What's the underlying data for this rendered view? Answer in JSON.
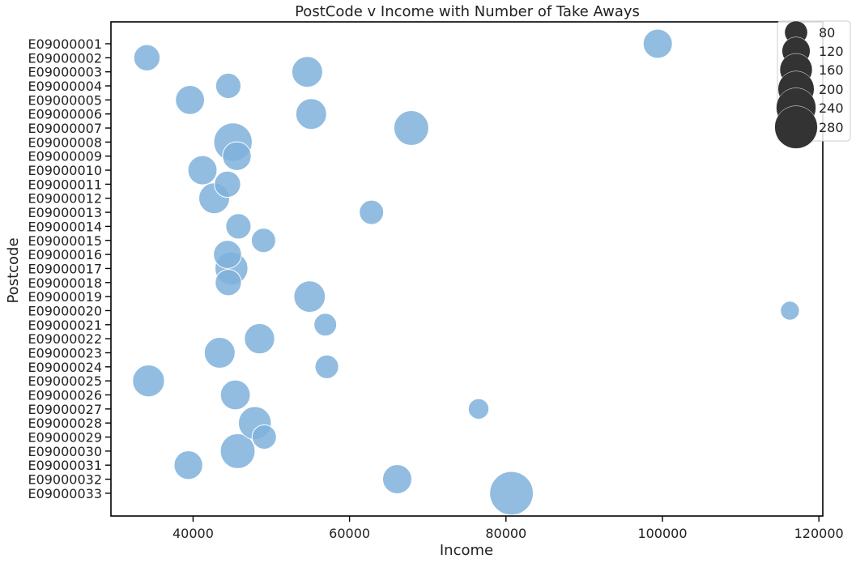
{
  "chart_data": {
    "type": "scatter",
    "title": "PostCode v Income with Number of Take Aways",
    "xlabel": "Income",
    "ylabel": "Postcode",
    "xlim": [
      29500,
      120500
    ],
    "xticks": [
      40000,
      60000,
      80000,
      100000,
      120000
    ],
    "categories": [
      "E09000001",
      "E09000002",
      "E09000003",
      "E09000004",
      "E09000005",
      "E09000006",
      "E09000007",
      "E09000008",
      "E09000009",
      "E09000010",
      "E09000011",
      "E09000012",
      "E09000013",
      "E09000014",
      "E09000015",
      "E09000016",
      "E09000017",
      "E09000018",
      "E09000019",
      "E09000020",
      "E09000021",
      "E09000022",
      "E09000023",
      "E09000024",
      "E09000025",
      "E09000026",
      "E09000027",
      "E09000028",
      "E09000029",
      "E09000030",
      "E09000031",
      "E09000032",
      "E09000033"
    ],
    "points": [
      {
        "postcode": "E09000001",
        "income": 99400,
        "takeaways": 130
      },
      {
        "postcode": "E09000002",
        "income": 34100,
        "takeaways": 105
      },
      {
        "postcode": "E09000003",
        "income": 54600,
        "takeaways": 145
      },
      {
        "postcode": "E09000004",
        "income": 44500,
        "takeaways": 98
      },
      {
        "postcode": "E09000005",
        "income": 39600,
        "takeaways": 128
      },
      {
        "postcode": "E09000006",
        "income": 55100,
        "takeaways": 145
      },
      {
        "postcode": "E09000007",
        "income": 67900,
        "takeaways": 185
      },
      {
        "postcode": "E09000008",
        "income": 45100,
        "takeaways": 225
      },
      {
        "postcode": "E09000009",
        "income": 45600,
        "takeaways": 125
      },
      {
        "postcode": "E09000010",
        "income": 41200,
        "takeaways": 130
      },
      {
        "postcode": "E09000011",
        "income": 44400,
        "takeaways": 105
      },
      {
        "postcode": "E09000012",
        "income": 42700,
        "takeaways": 145
      },
      {
        "postcode": "E09000013",
        "income": 62800,
        "takeaways": 90
      },
      {
        "postcode": "E09000014",
        "income": 45800,
        "takeaways": 98
      },
      {
        "postcode": "E09000015",
        "income": 49000,
        "takeaways": 90
      },
      {
        "postcode": "E09000016",
        "income": 44400,
        "takeaways": 120
      },
      {
        "postcode": "E09000017",
        "income": 44900,
        "takeaways": 165
      },
      {
        "postcode": "E09000018",
        "income": 44500,
        "takeaways": 105
      },
      {
        "postcode": "E09000019",
        "income": 54900,
        "takeaways": 150
      },
      {
        "postcode": "E09000020",
        "income": 116300,
        "takeaways": 55
      },
      {
        "postcode": "E09000021",
        "income": 56900,
        "takeaways": 78
      },
      {
        "postcode": "E09000022",
        "income": 48500,
        "takeaways": 140
      },
      {
        "postcode": "E09000023",
        "income": 43400,
        "takeaways": 145
      },
      {
        "postcode": "E09000024",
        "income": 57100,
        "takeaways": 85
      },
      {
        "postcode": "E09000025",
        "income": 34300,
        "takeaways": 155
      },
      {
        "postcode": "E09000026",
        "income": 45400,
        "takeaways": 135
      },
      {
        "postcode": "E09000027",
        "income": 76500,
        "takeaways": 65
      },
      {
        "postcode": "E09000028",
        "income": 47900,
        "takeaways": 165
      },
      {
        "postcode": "E09000029",
        "income": 49100,
        "takeaways": 90
      },
      {
        "postcode": "E09000030",
        "income": 45700,
        "takeaways": 185
      },
      {
        "postcode": "E09000031",
        "income": 39400,
        "takeaways": 125
      },
      {
        "postcode": "E09000032",
        "income": 66100,
        "takeaways": 130
      },
      {
        "postcode": "E09000033",
        "income": 80700,
        "takeaways": 290
      }
    ],
    "size_legend": {
      "placement": "top-right",
      "values": [
        80,
        120,
        160,
        200,
        240,
        280
      ]
    },
    "grid": false,
    "colors": {
      "point": "#7fb2da",
      "point_edge": "#ffffff",
      "legend_marker": "#333333",
      "axis": "#000000"
    },
    "point_opacity": 0.85
  }
}
